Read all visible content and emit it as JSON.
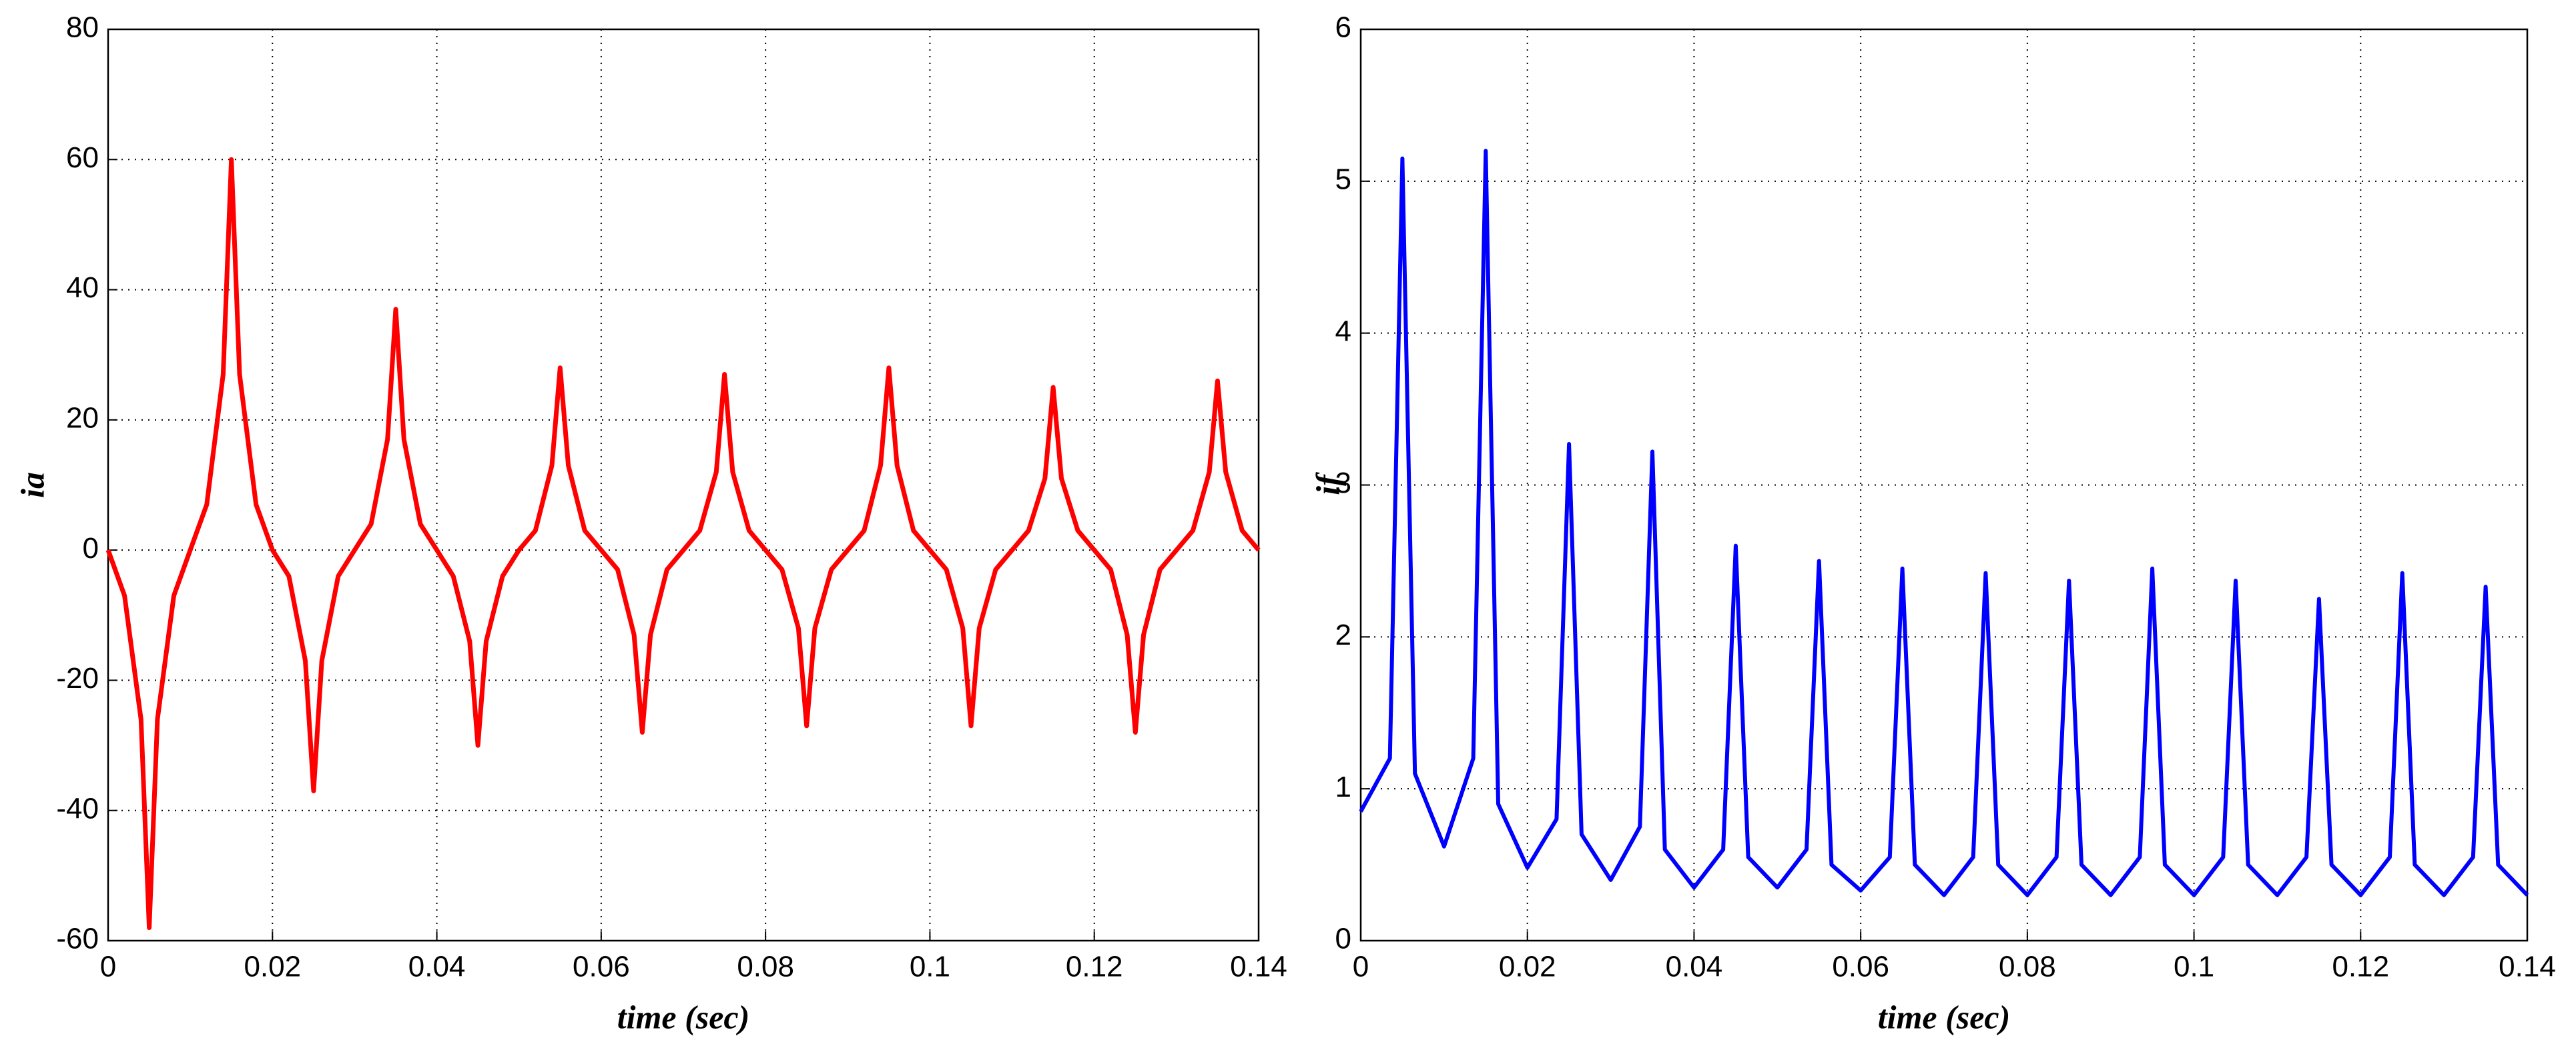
{
  "chart_data": [
    {
      "type": "line",
      "xlabel": "time (sec)",
      "ylabel": "ia",
      "color": "#ff0000",
      "grid": true,
      "xlim": [
        0,
        0.14
      ],
      "xticks": [
        0,
        0.02,
        0.04,
        0.06,
        0.08,
        0.1,
        0.12,
        0.14
      ],
      "ylim": [
        -60,
        80
      ],
      "yticks": [
        -60,
        -40,
        -20,
        0,
        20,
        40,
        60,
        80
      ],
      "x": [
        0,
        0.002,
        0.004,
        0.005,
        0.006,
        0.008,
        0.01,
        0.012,
        0.014,
        0.015,
        0.016,
        0.018,
        0.02,
        0.022,
        0.024,
        0.025,
        0.026,
        0.028,
        0.03,
        0.032,
        0.034,
        0.035,
        0.036,
        0.038,
        0.04,
        0.042,
        0.044,
        0.045,
        0.046,
        0.048,
        0.05,
        0.052,
        0.054,
        0.055,
        0.056,
        0.058,
        0.06,
        0.062,
        0.064,
        0.065,
        0.066,
        0.068,
        0.07,
        0.072,
        0.074,
        0.075,
        0.076,
        0.078,
        0.08,
        0.082,
        0.084,
        0.085,
        0.086,
        0.088,
        0.09,
        0.092,
        0.094,
        0.095,
        0.096,
        0.098,
        0.1,
        0.102,
        0.104,
        0.105,
        0.106,
        0.108,
        0.11,
        0.112,
        0.114,
        0.115,
        0.116,
        0.118,
        0.12,
        0.122,
        0.124,
        0.125,
        0.126,
        0.128,
        0.13,
        0.132,
        0.134,
        0.135,
        0.136,
        0.138,
        0.14
      ],
      "values": [
        0,
        -7,
        -26,
        -58,
        -26,
        -7,
        0,
        7,
        27,
        60,
        27,
        7,
        0,
        -4,
        -17,
        -37,
        -17,
        -4,
        0,
        4,
        17,
        37,
        17,
        4,
        0,
        -4,
        -14,
        -30,
        -14,
        -4,
        0,
        3,
        13,
        28,
        13,
        3,
        0,
        -3,
        -13,
        -28,
        -13,
        -3,
        0,
        3,
        12,
        27,
        12,
        3,
        0,
        -3,
        -12,
        -27,
        -12,
        -3,
        0,
        3,
        13,
        28,
        13,
        3,
        0,
        -3,
        -12,
        -27,
        -12,
        -3,
        0,
        3,
        11,
        25,
        11,
        3,
        0,
        -3,
        -13,
        -28,
        -13,
        -3,
        0,
        3,
        12,
        26,
        12,
        3,
        0
      ]
    },
    {
      "type": "line",
      "xlabel": "time (sec)",
      "ylabel": "if",
      "color": "#0000ff",
      "grid": true,
      "xlim": [
        0,
        0.14
      ],
      "xticks": [
        0,
        0.02,
        0.04,
        0.06,
        0.08,
        0.1,
        0.12,
        0.14
      ],
      "ylim": [
        0,
        6
      ],
      "yticks": [
        0,
        1,
        2,
        3,
        4,
        5,
        6
      ],
      "x": [
        0,
        0.0035,
        0.005,
        0.0065,
        0.01,
        0.0135,
        0.015,
        0.0165,
        0.02,
        0.0235,
        0.025,
        0.0265,
        0.03,
        0.0335,
        0.035,
        0.0365,
        0.04,
        0.0435,
        0.045,
        0.0465,
        0.05,
        0.0535,
        0.055,
        0.0565,
        0.06,
        0.0635,
        0.065,
        0.0665,
        0.07,
        0.0735,
        0.075,
        0.0765,
        0.08,
        0.0835,
        0.085,
        0.0865,
        0.09,
        0.0935,
        0.095,
        0.0965,
        0.1,
        0.1035,
        0.105,
        0.1065,
        0.11,
        0.1135,
        0.115,
        0.1165,
        0.12,
        0.1235,
        0.125,
        0.1265,
        0.13,
        0.1335,
        0.135,
        0.1365,
        0.14
      ],
      "values": [
        0.85,
        1.2,
        5.15,
        1.1,
        0.62,
        1.2,
        5.2,
        0.9,
        0.48,
        0.8,
        3.27,
        0.7,
        0.4,
        0.75,
        3.22,
        0.6,
        0.35,
        0.6,
        2.6,
        0.55,
        0.35,
        0.6,
        2.5,
        0.5,
        0.33,
        0.55,
        2.45,
        0.5,
        0.3,
        0.55,
        2.42,
        0.5,
        0.3,
        0.55,
        2.37,
        0.5,
        0.3,
        0.55,
        2.45,
        0.5,
        0.3,
        0.55,
        2.37,
        0.5,
        0.3,
        0.55,
        2.25,
        0.5,
        0.3,
        0.55,
        2.42,
        0.5,
        0.3,
        0.55,
        2.33,
        0.5,
        0.3
      ]
    }
  ]
}
